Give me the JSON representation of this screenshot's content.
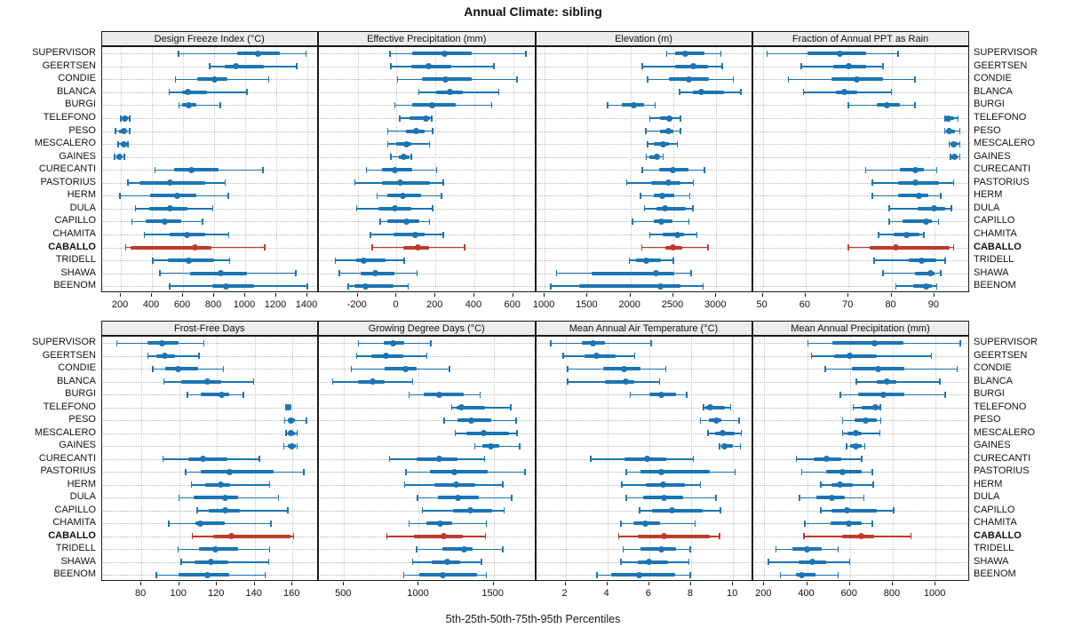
{
  "chart_data": {
    "type": "interval",
    "title": "Annual Climate: sibling",
    "caption": "5th-25th-50th-75th-95th Percentiles",
    "percentile_levels": [
      5,
      25,
      50,
      75,
      95
    ],
    "legend_position": "none",
    "grid": "dotted",
    "stations": [
      "SUPERVISOR",
      "GEERTSEN",
      "CONDIE",
      "BLANCA",
      "BURGI",
      "TELEFONO",
      "PESO",
      "MESCALERO",
      "GAINES",
      "CURECANTI",
      "PASTORIUS",
      "HERM",
      "DULA",
      "CAPILLO",
      "CHAMITA",
      "CABALLO",
      "TRIDELL",
      "SHAWA",
      "BEENOM"
    ],
    "highlighted_station": "CABALLO",
    "colors": {
      "series": "#1b75b4",
      "highlight": "#c0392b",
      "gridline": "#c9c9c9",
      "guideline": "#b4b4b4",
      "header_bg": "#ececec",
      "border": "#1a1a1a"
    },
    "panels": [
      {
        "title": "Design Freeze Index (°C)",
        "ticks": [
          200,
          400,
          600,
          800,
          1000,
          1200,
          1400
        ],
        "xlim": [
          77,
          1474
        ],
        "values": [
          [
            570,
            950,
            1080,
            1220,
            1390
          ],
          [
            770,
            870,
            940,
            1120,
            1330
          ],
          [
            550,
            690,
            805,
            885,
            1150
          ],
          [
            510,
            595,
            630,
            755,
            1010
          ],
          [
            575,
            595,
            635,
            685,
            840
          ],
          [
            200,
            212,
            228,
            244,
            258
          ],
          [
            165,
            190,
            217,
            235,
            257
          ],
          [
            183,
            200,
            217,
            234,
            246
          ],
          [
            160,
            171,
            189,
            206,
            223
          ],
          [
            420,
            545,
            655,
            830,
            1115
          ],
          [
            245,
            320,
            515,
            745,
            870
          ],
          [
            195,
            390,
            565,
            685,
            890
          ],
          [
            295,
            385,
            515,
            630,
            790
          ],
          [
            270,
            360,
            480,
            590,
            725
          ],
          [
            350,
            515,
            625,
            745,
            895
          ],
          [
            230,
            260,
            675,
            785,
            1125
          ],
          [
            405,
            505,
            635,
            800,
            900
          ],
          [
            450,
            645,
            845,
            1010,
            1325
          ],
          [
            515,
            790,
            875,
            1055,
            1400
          ]
        ]
      },
      {
        "title": "Effective Precipitation (mm)",
        "ticks": [
          -200,
          0,
          200,
          400,
          600
        ],
        "xlim": [
          -400,
          718
        ],
        "values": [
          [
            -35,
            80,
            245,
            385,
            665
          ],
          [
            -30,
            75,
            165,
            280,
            500
          ],
          [
            5,
            130,
            250,
            385,
            620
          ],
          [
            115,
            205,
            275,
            340,
            525
          ],
          [
            -10,
            80,
            185,
            305,
            490
          ],
          [
            15,
            65,
            150,
            170,
            180
          ],
          [
            -45,
            50,
            100,
            145,
            185
          ],
          [
            -45,
            0,
            50,
            75,
            170
          ],
          [
            -30,
            10,
            35,
            65,
            75
          ],
          [
            -155,
            -75,
            -10,
            80,
            205
          ],
          [
            -215,
            -75,
            20,
            170,
            240
          ],
          [
            -100,
            -50,
            30,
            125,
            230
          ],
          [
            -205,
            -95,
            -10,
            75,
            185
          ],
          [
            -85,
            -50,
            50,
            115,
            170
          ],
          [
            -135,
            -15,
            95,
            145,
            240
          ],
          [
            -125,
            35,
            110,
            165,
            350
          ],
          [
            -315,
            -210,
            -170,
            -55,
            40
          ],
          [
            -295,
            -185,
            -110,
            -10,
            105
          ],
          [
            -250,
            -215,
            -160,
            -15,
            60
          ]
        ]
      },
      {
        "title": "Elevation (m)",
        "ticks": [
          1000,
          1500,
          2000,
          2500,
          3000
        ],
        "xlim": [
          900,
          3427
        ],
        "values": [
          [
            2425,
            2520,
            2640,
            2865,
            3055
          ],
          [
            2140,
            2520,
            2730,
            2900,
            3070
          ],
          [
            2200,
            2450,
            2685,
            2915,
            3200
          ],
          [
            2570,
            2725,
            2830,
            3090,
            3285
          ],
          [
            1735,
            1900,
            2040,
            2155,
            2290
          ],
          [
            2225,
            2345,
            2450,
            2485,
            2585
          ],
          [
            2180,
            2345,
            2440,
            2500,
            2585
          ],
          [
            2200,
            2275,
            2380,
            2450,
            2545
          ],
          [
            2185,
            2220,
            2305,
            2345,
            2380
          ],
          [
            2140,
            2330,
            2490,
            2675,
            2865
          ],
          [
            1955,
            2240,
            2440,
            2585,
            2735
          ],
          [
            2115,
            2275,
            2370,
            2510,
            2690
          ],
          [
            2165,
            2305,
            2405,
            2640,
            2730
          ],
          [
            2025,
            2270,
            2360,
            2490,
            2680
          ],
          [
            2225,
            2380,
            2550,
            2620,
            2775
          ],
          [
            2130,
            2405,
            2490,
            2605,
            2905
          ],
          [
            1985,
            2070,
            2185,
            2360,
            2500
          ],
          [
            1140,
            1550,
            2295,
            2515,
            2705
          ],
          [
            1070,
            1405,
            2345,
            2585,
            2845
          ]
        ]
      },
      {
        "title": "Fraction of Annual PPT as Rain",
        "ticks": [
          50,
          60,
          70,
          80,
          90
        ],
        "xlim": [
          47.7,
          98.2
        ],
        "values": [
          [
            51,
            60.5,
            68,
            74,
            81.5
          ],
          [
            59,
            66.5,
            70,
            74,
            78
          ],
          [
            56,
            66,
            72,
            78,
            85.5
          ],
          [
            59.5,
            67,
            69,
            72,
            80
          ],
          [
            70,
            76.5,
            79,
            82,
            85.5
          ],
          [
            92.5,
            92.8,
            93.3,
            94.5,
            95.5
          ],
          [
            92.4,
            92.8,
            93.4,
            94.8,
            95.9
          ],
          [
            93.4,
            93.7,
            94.5,
            95.5,
            95.9
          ],
          [
            93.7,
            94,
            94.7,
            95.5,
            95.9
          ],
          [
            74,
            82,
            85.5,
            87.5,
            90.5
          ],
          [
            75.5,
            81.5,
            85.5,
            91,
            94.5
          ],
          [
            75.5,
            81.5,
            86.5,
            88.5,
            91.5
          ],
          [
            79.5,
            86,
            90,
            92.5,
            94
          ],
          [
            79.5,
            82.5,
            88,
            89.5,
            91
          ],
          [
            77,
            80.5,
            83.5,
            86.5,
            87.5
          ],
          [
            70,
            75,
            81,
            93.5,
            94.5
          ],
          [
            76,
            84,
            87,
            90.5,
            92.5
          ],
          [
            78,
            85.5,
            89,
            90,
            91.5
          ],
          [
            81,
            85,
            88,
            89.5,
            90.5
          ]
        ]
      },
      {
        "title": "Frost-Free Days",
        "ticks": [
          80,
          100,
          120,
          140,
          160
        ],
        "xlim": [
          59,
          174
        ],
        "values": [
          [
            67,
            83,
            91,
            99.5,
            113
          ],
          [
            83.5,
            88,
            92.5,
            98,
            110.5
          ],
          [
            86,
            92.5,
            99.5,
            110,
            123.5
          ],
          [
            92,
            101,
            115,
            122.5,
            139.5
          ],
          [
            104.5,
            111.5,
            122.5,
            126.5,
            134
          ],
          [
            156.5,
            157,
            157.8,
            158.6,
            159.2
          ],
          [
            156,
            157.5,
            159,
            161.5,
            167.5
          ],
          [
            156.5,
            157.5,
            159,
            161.5,
            162.5
          ],
          [
            155.5,
            157.5,
            159.5,
            162,
            162.5
          ],
          [
            91.5,
            105,
            112.5,
            125.5,
            142.5
          ],
          [
            103.5,
            111.5,
            126.5,
            150,
            166
          ],
          [
            106.5,
            114,
            122,
            127,
            148
          ],
          [
            100,
            107.5,
            124.5,
            131,
            152.5
          ],
          [
            109.5,
            115.5,
            124.5,
            132,
            157.5
          ],
          [
            94.5,
            108.5,
            111,
            124,
            148.5
          ],
          [
            107,
            118,
            127.5,
            159,
            160.5
          ],
          [
            99.5,
            110.5,
            119,
            131,
            148
          ],
          [
            101,
            108,
            117,
            126,
            147.5
          ],
          [
            88,
            99.5,
            115,
            126.5,
            145.5
          ]
        ]
      },
      {
        "title": "Growing Degree Days (°C)",
        "ticks": [
          500,
          1000,
          1500
        ],
        "xlim": [
          332,
          1784
        ],
        "values": [
          [
            595,
            765,
            825,
            905,
            1080
          ],
          [
            585,
            680,
            780,
            895,
            1055
          ],
          [
            550,
            770,
            910,
            985,
            1205
          ],
          [
            425,
            595,
            690,
            770,
            960
          ],
          [
            935,
            1035,
            1135,
            1300,
            1410
          ],
          [
            1220,
            1250,
            1285,
            1440,
            1615
          ],
          [
            1170,
            1260,
            1350,
            1485,
            1650
          ],
          [
            1245,
            1320,
            1435,
            1600,
            1655
          ],
          [
            1375,
            1425,
            1480,
            1540,
            1675
          ],
          [
            805,
            985,
            1135,
            1260,
            1440
          ],
          [
            915,
            1075,
            1235,
            1460,
            1710
          ],
          [
            905,
            1105,
            1250,
            1380,
            1560
          ],
          [
            990,
            1125,
            1260,
            1400,
            1620
          ],
          [
            1025,
            1230,
            1345,
            1490,
            1570
          ],
          [
            935,
            1050,
            1145,
            1225,
            1450
          ],
          [
            785,
            970,
            1165,
            1295,
            1445
          ],
          [
            985,
            1160,
            1300,
            1360,
            1560
          ],
          [
            960,
            1085,
            1190,
            1275,
            1420
          ],
          [
            900,
            1005,
            1160,
            1390,
            1450
          ]
        ]
      },
      {
        "title": "Mean Annual Air Temperature (°C)",
        "ticks": [
          2,
          4,
          6,
          8,
          10
        ],
        "xlim": [
          0.6,
          10.95
        ],
        "values": [
          [
            1.3,
            2.8,
            3.3,
            3.9,
            6.1
          ],
          [
            1.9,
            2.9,
            3.5,
            4.4,
            5.3
          ],
          [
            2.1,
            3.8,
            4.8,
            5.6,
            6.8
          ],
          [
            2.1,
            3.9,
            4.9,
            5.3,
            6.5
          ],
          [
            5.1,
            6.0,
            6.6,
            7.3,
            7.8
          ],
          [
            8.6,
            8.7,
            8.9,
            9.6,
            9.9
          ],
          [
            8.45,
            8.85,
            9.2,
            9.45,
            10.3
          ],
          [
            8.8,
            9.15,
            9.5,
            10.1,
            10.4
          ],
          [
            9.35,
            9.45,
            9.6,
            10.0,
            10.35
          ],
          [
            3.2,
            4.8,
            5.9,
            6.8,
            8.1
          ],
          [
            4.9,
            5.6,
            6.6,
            8.9,
            10.1
          ],
          [
            4.7,
            5.85,
            6.65,
            7.7,
            8.45
          ],
          [
            4.9,
            5.7,
            6.7,
            7.6,
            9.2
          ],
          [
            5.55,
            6.15,
            7.1,
            8.55,
            9.4
          ],
          [
            4.65,
            5.25,
            5.8,
            6.5,
            8.2
          ],
          [
            4.55,
            5.45,
            6.7,
            8.9,
            9.35
          ],
          [
            4.75,
            5.6,
            6.6,
            7.3,
            7.95
          ],
          [
            4.65,
            5.45,
            6.0,
            6.9,
            7.9
          ],
          [
            3.5,
            4.2,
            5.5,
            7.25,
            7.95
          ]
        ]
      },
      {
        "title": "Mean Annual Precipitation (mm)",
        "ticks": [
          200,
          400,
          600,
          800,
          1000
        ],
        "xlim": [
          147,
          1159
        ],
        "values": [
          [
            405,
            520,
            715,
            850,
            1115
          ],
          [
            420,
            525,
            600,
            725,
            980
          ],
          [
            485,
            610,
            730,
            855,
            1100
          ],
          [
            630,
            725,
            775,
            815,
            1020
          ],
          [
            555,
            640,
            755,
            855,
            1045
          ],
          [
            615,
            655,
            720,
            737,
            742
          ],
          [
            565,
            620,
            675,
            725,
            745
          ],
          [
            565,
            590,
            630,
            655,
            740
          ],
          [
            585,
            600,
            630,
            655,
            670
          ],
          [
            350,
            430,
            490,
            560,
            655
          ],
          [
            375,
            490,
            565,
            655,
            705
          ],
          [
            465,
            515,
            555,
            615,
            710
          ],
          [
            365,
            445,
            515,
            575,
            665
          ],
          [
            465,
            515,
            585,
            725,
            805
          ],
          [
            390,
            510,
            595,
            655,
            705
          ],
          [
            385,
            565,
            655,
            715,
            885
          ],
          [
            255,
            330,
            400,
            470,
            545
          ],
          [
            220,
            360,
            425,
            490,
            600
          ],
          [
            275,
            350,
            375,
            440,
            545
          ]
        ]
      }
    ]
  }
}
